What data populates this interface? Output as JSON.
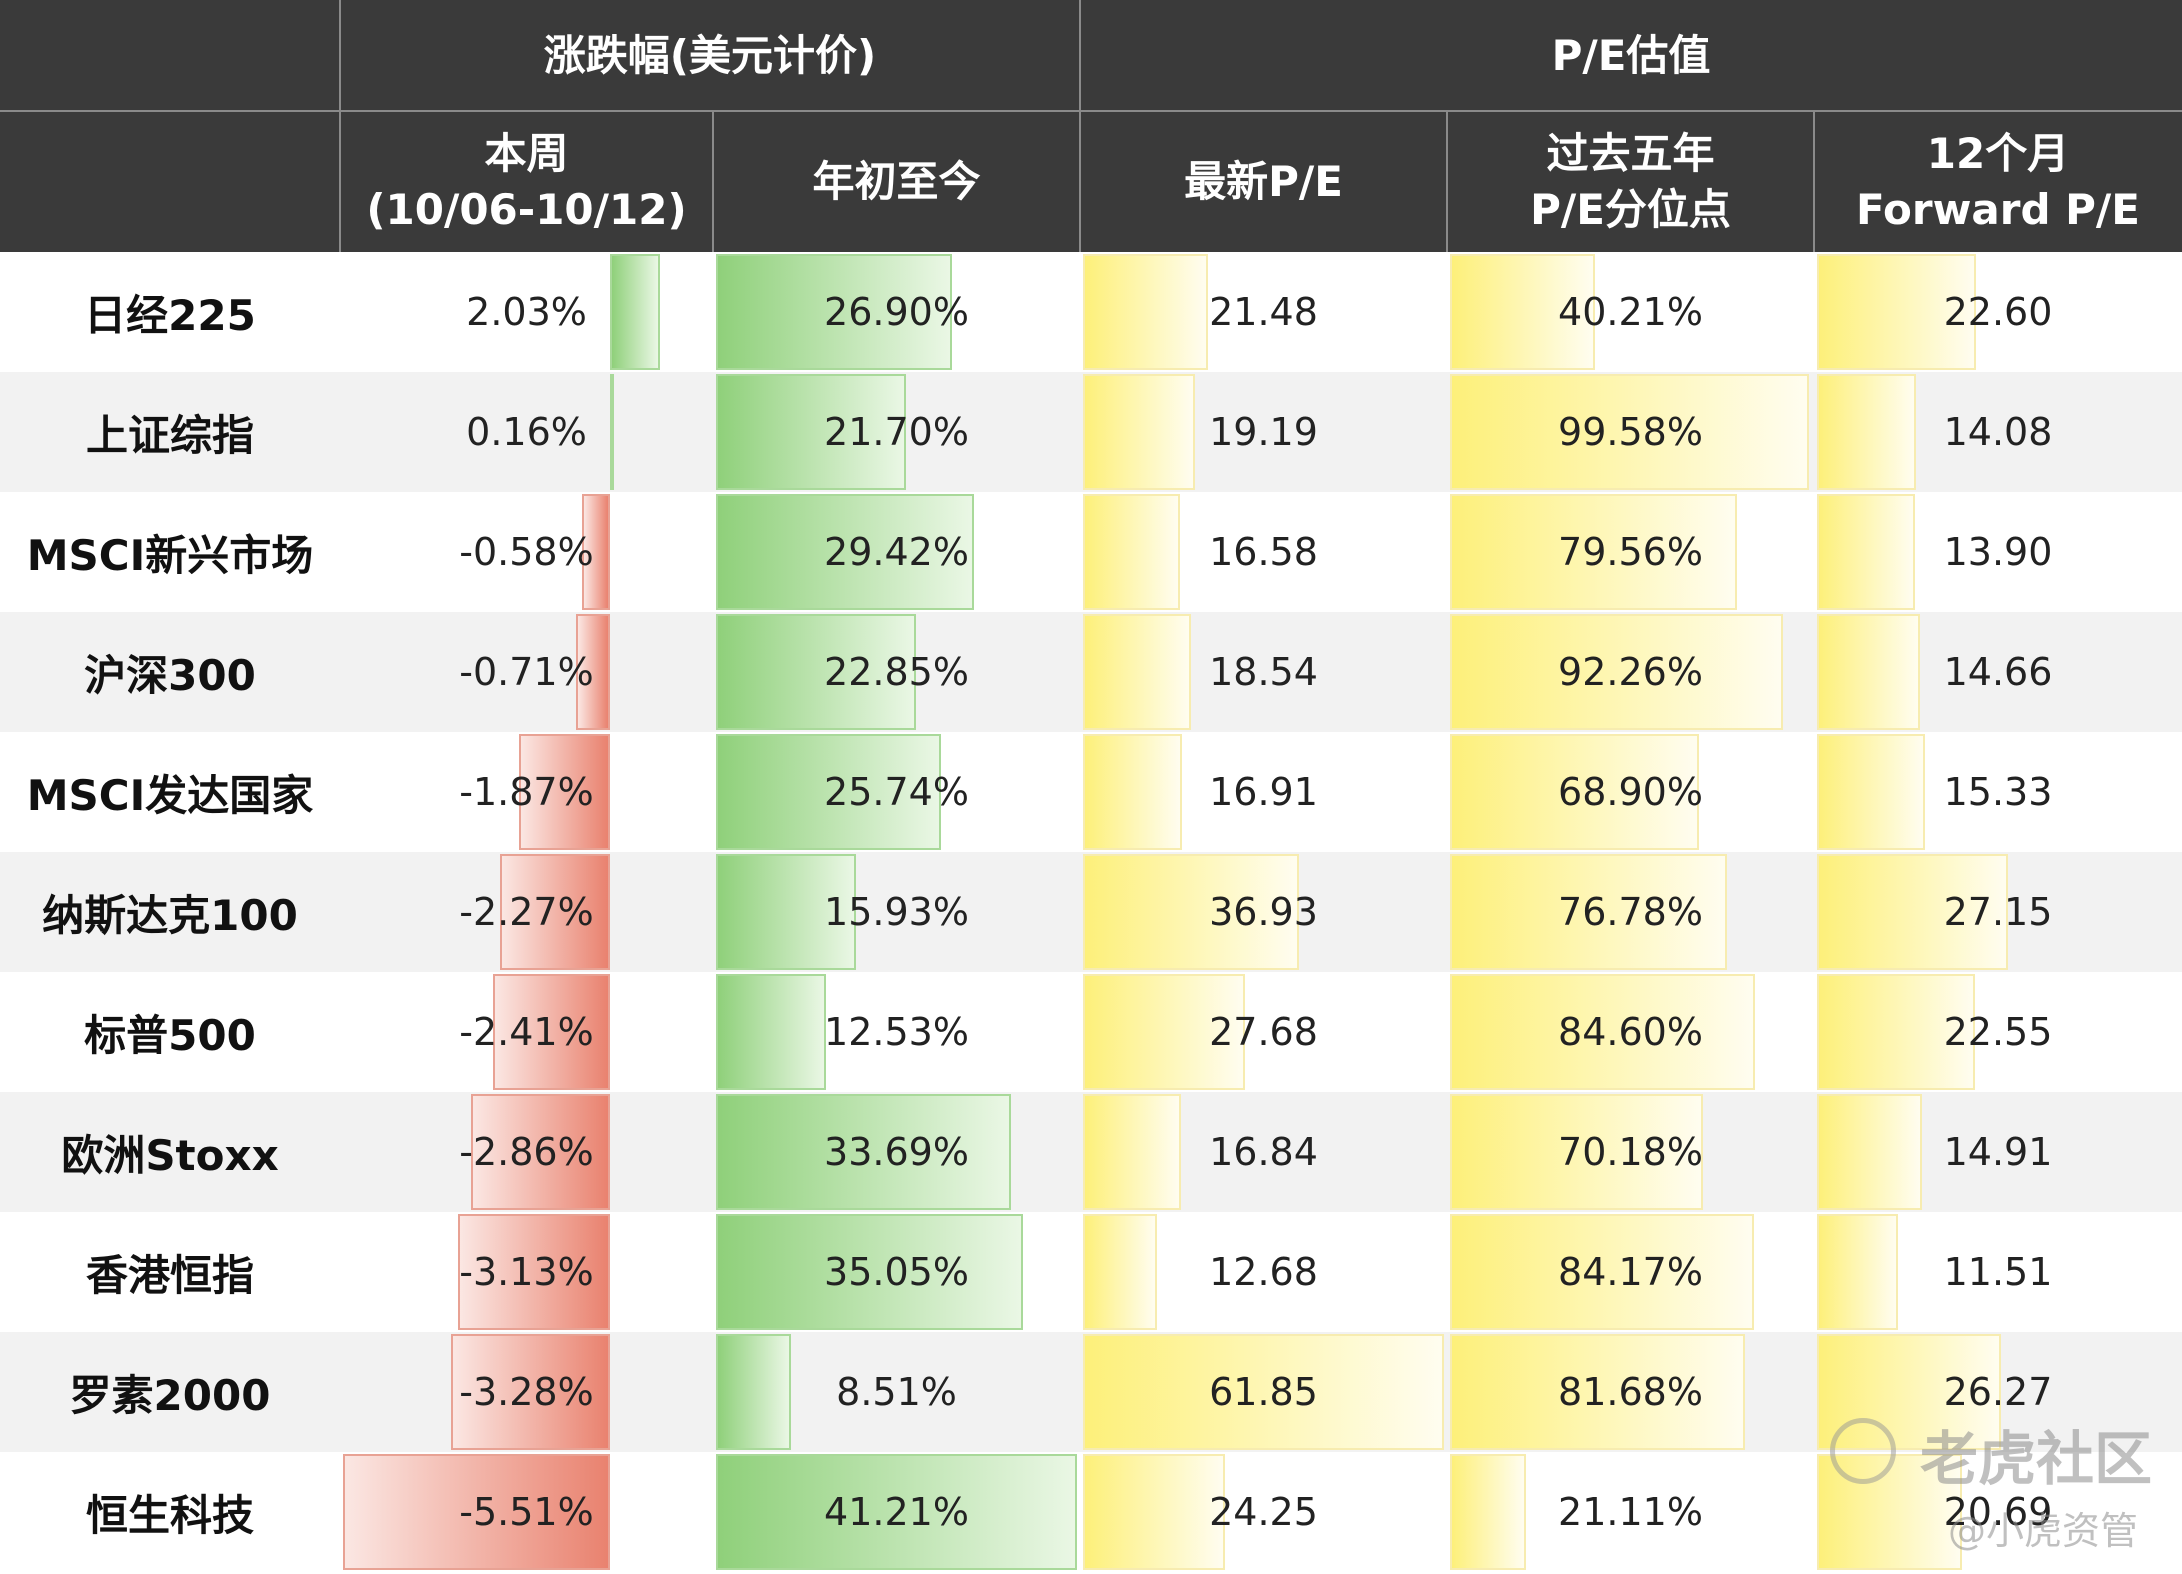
{
  "chart_data": {
    "type": "table",
    "header_groups": [
      "",
      "涨跌幅(美元计价)",
      "P/E估值"
    ],
    "headers": [
      "",
      "本周\n(10/06-10/12)",
      "年初至今",
      "最新P/E",
      "过去五年\nP/E分位点",
      "12个月\nForward P/E"
    ],
    "rows": [
      {
        "name": "日经225",
        "week": "2.03%",
        "ytd": "26.90%",
        "pe": "21.48",
        "pct5y": "40.21%",
        "fpe": "22.60"
      },
      {
        "name": "上证综指",
        "week": "0.16%",
        "ytd": "21.70%",
        "pe": "19.19",
        "pct5y": "99.58%",
        "fpe": "14.08"
      },
      {
        "name": "MSCI新兴市场",
        "week": "-0.58%",
        "ytd": "29.42%",
        "pe": "16.58",
        "pct5y": "79.56%",
        "fpe": "13.90"
      },
      {
        "name": "沪深300",
        "week": "-0.71%",
        "ytd": "22.85%",
        "pe": "18.54",
        "pct5y": "92.26%",
        "fpe": "14.66"
      },
      {
        "name": "MSCI发达国家",
        "week": "-1.87%",
        "ytd": "25.74%",
        "pe": "16.91",
        "pct5y": "68.90%",
        "fpe": "15.33"
      },
      {
        "name": "纳斯达克100",
        "week": "-2.27%",
        "ytd": "15.93%",
        "pe": "36.93",
        "pct5y": "76.78%",
        "fpe": "27.15"
      },
      {
        "name": "标普500",
        "week": "-2.41%",
        "ytd": "12.53%",
        "pe": "27.68",
        "pct5y": "84.60%",
        "fpe": "22.55"
      },
      {
        "name": "欧洲Stoxx",
        "week": "-2.86%",
        "ytd": "33.69%",
        "pe": "16.84",
        "pct5y": "70.18%",
        "fpe": "14.91"
      },
      {
        "name": "香港恒指",
        "week": "-3.13%",
        "ytd": "35.05%",
        "pe": "12.68",
        "pct5y": "84.17%",
        "fpe": "11.51"
      },
      {
        "name": "罗素2000",
        "week": "-3.28%",
        "ytd": "8.51%",
        "pe": "61.85",
        "pct5y": "81.68%",
        "fpe": "26.27"
      },
      {
        "name": "恒生科技",
        "week": "-5.51%",
        "ytd": "41.21%",
        "pe": "24.25",
        "pct5y": "21.11%",
        "fpe": "20.69"
      }
    ],
    "colors": {
      "header_bg": "#3a3a3a",
      "positive_bar": "#8fd07a",
      "negative_bar": "#e9826f",
      "pe_bar": "#fdf07a",
      "alt_row_bg": "#f2f2f2"
    }
  },
  "watermark": {
    "brand": "老虎社区",
    "handle": "@小虎资管"
  }
}
